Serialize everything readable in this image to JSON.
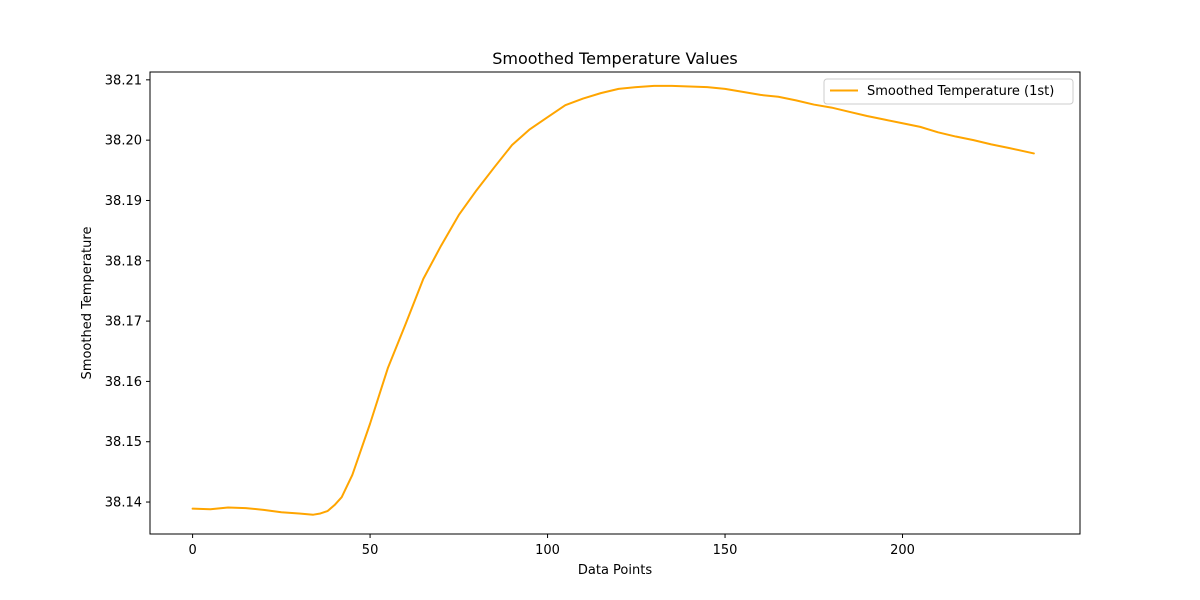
{
  "chart_data": {
    "type": "line",
    "title": "Smoothed Temperature Values",
    "xlabel": "Data Points",
    "ylabel": "Smoothed Temperature",
    "xlim": [
      -12,
      250
    ],
    "ylim": [
      38.1347,
      38.2113
    ],
    "xticks": [
      0,
      50,
      100,
      150,
      200
    ],
    "xtick_labels": [
      "0",
      "50",
      "100",
      "150",
      "200"
    ],
    "yticks": [
      38.14,
      38.15,
      38.16,
      38.17,
      38.18,
      38.19,
      38.2,
      38.21
    ],
    "ytick_labels": [
      "38.14",
      "38.15",
      "38.16",
      "38.17",
      "38.18",
      "38.19",
      "38.20",
      "38.21"
    ],
    "grid": false,
    "legend_position": "top-right",
    "series": [
      {
        "name": "Smoothed Temperature (1st)",
        "color": "#ffa500",
        "x": [
          0,
          5,
          10,
          15,
          20,
          25,
          30,
          34,
          36,
          38,
          40,
          42,
          45,
          50,
          55,
          60,
          65,
          70,
          75,
          80,
          85,
          90,
          95,
          100,
          105,
          110,
          115,
          120,
          125,
          130,
          135,
          140,
          145,
          150,
          155,
          160,
          165,
          170,
          175,
          180,
          185,
          190,
          195,
          200,
          205,
          210,
          215,
          220,
          225,
          230,
          237
        ],
        "y": [
          38.1389,
          38.1388,
          38.1391,
          38.139,
          38.1387,
          38.1383,
          38.1381,
          38.1379,
          38.1381,
          38.1385,
          38.1395,
          38.1408,
          38.1445,
          38.153,
          38.1622,
          38.1695,
          38.177,
          38.1825,
          38.1876,
          38.1917,
          38.1955,
          38.1992,
          38.2018,
          38.2038,
          38.2058,
          38.2069,
          38.2078,
          38.2085,
          38.2088,
          38.209,
          38.209,
          38.2089,
          38.2088,
          38.2085,
          38.208,
          38.2075,
          38.2072,
          38.2066,
          38.2059,
          38.2054,
          38.2047,
          38.204,
          38.2034,
          38.2028,
          38.2022,
          38.2013,
          38.2006,
          38.2,
          38.1993,
          38.1987,
          38.1978
        ]
      }
    ]
  }
}
